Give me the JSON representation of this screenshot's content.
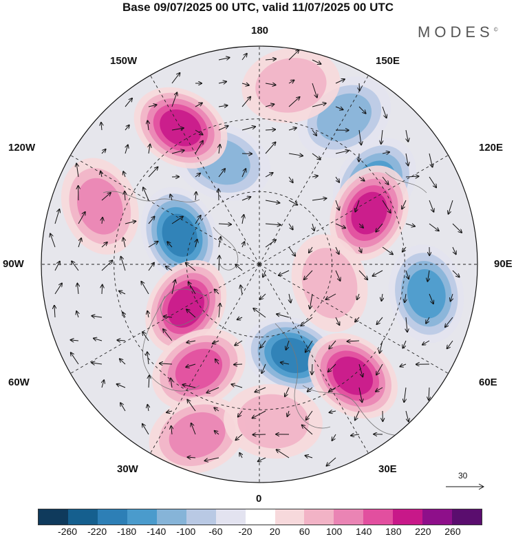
{
  "title": "Base 09/07/2025 00 UTC, valid 11/07/2025 00 UTC",
  "logo": "MODES",
  "logo_mark": "©",
  "longitude_labels": {
    "top": "180",
    "top_left": "150W",
    "top_right": "150E",
    "upper_left": "120W",
    "upper_right": "120E",
    "left": "90W",
    "right": "90E",
    "lower_left": "60W",
    "lower_right": "60E",
    "bottom_left": "30W",
    "bottom_right": "30E",
    "bottom": "0"
  },
  "reference_vector_label": "30",
  "colorbar": {
    "colors": [
      "#0f3a5c",
      "#155f8e",
      "#2d7fb6",
      "#4a9bcc",
      "#86b4d8",
      "#b9c9e4",
      "#e3e3f0",
      "#ffffff",
      "#f7d9dc",
      "#f2b3c6",
      "#ea84b4",
      "#e24f9f",
      "#c81889",
      "#8e0f8a",
      "#5a0d6e"
    ],
    "tick_labels": [
      "-260",
      "-220",
      "-180",
      "-140",
      "-100",
      "-60",
      "-20",
      "20",
      "60",
      "100",
      "140",
      "180",
      "220",
      "260"
    ]
  },
  "anomaly_centers": [
    {
      "lon_deg": 80,
      "colat": 70,
      "value": -160
    },
    {
      "lon_deg": 125,
      "colat": 58,
      "value": -140
    },
    {
      "lon_deg": 200,
      "colat": 45,
      "value": -120
    },
    {
      "lon_deg": 150,
      "colat": 70,
      "value": -100
    },
    {
      "lon_deg": 250,
      "colat": 35,
      "value": -180
    },
    {
      "lon_deg": 20,
      "colat": 40,
      "value": -180
    },
    {
      "lon_deg": 40,
      "colat": 60,
      "value": 200
    },
    {
      "lon_deg": 115,
      "colat": 50,
      "value": 180
    },
    {
      "lon_deg": 210,
      "colat": 65,
      "value": 190
    },
    {
      "lon_deg": 250,
      "colat": 70,
      "value": 120
    },
    {
      "lon_deg": 300,
      "colat": 35,
      "value": 180
    },
    {
      "lon_deg": 330,
      "colat": 50,
      "value": 160
    },
    {
      "lon_deg": 75,
      "colat": 30,
      "value": 60
    },
    {
      "lon_deg": 340,
      "colat": 75,
      "value": 100
    },
    {
      "lon_deg": 170,
      "colat": 75,
      "value": 80
    },
    {
      "lon_deg": 5,
      "colat": 65,
      "value": 80
    }
  ]
}
